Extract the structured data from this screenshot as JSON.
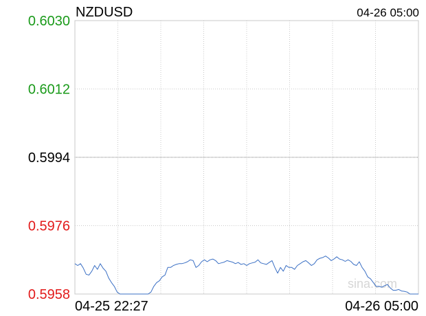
{
  "header": {
    "symbol": "NZDUSD",
    "timestamp": "04-26 05:00"
  },
  "watermark": "sina.com",
  "colors": {
    "line": "#3a6fc4",
    "up": "#1a9a1a",
    "down": "#e21a1a",
    "neutral": "#000000",
    "grid": "#c8c8c8",
    "frame": "#c8c8c8"
  },
  "chart_data": {
    "type": "line",
    "title": "NZDUSD",
    "reference_price": 0.5994,
    "ylim": [
      0.5958,
      0.603
    ],
    "y_ticks": [
      {
        "label": "0.6030",
        "value": 0.603,
        "color": "up"
      },
      {
        "label": "0.6012",
        "value": 0.6012,
        "color": "up"
      },
      {
        "label": "0.5994",
        "value": 0.5994,
        "color": "neutral"
      },
      {
        "label": "0.5976",
        "value": 0.5976,
        "color": "down"
      },
      {
        "label": "0.5958",
        "value": 0.5958,
        "color": "down"
      }
    ],
    "x_labels": [
      "04-25 22:27",
      "04-26 05:00"
    ],
    "vertical_gridlines": 8,
    "grid": true,
    "series": [
      {
        "values": [
          0.5966,
          0.59655,
          0.5966,
          0.59648,
          0.59632,
          0.5963,
          0.5964,
          0.59655,
          0.59645,
          0.5966,
          0.59648,
          0.5964,
          0.59622,
          0.5961,
          0.596,
          0.59585,
          0.59575,
          0.5958,
          0.59572,
          0.5957,
          0.5956,
          0.59578,
          0.59568,
          0.59548,
          0.5956,
          0.59575,
          0.59575,
          0.59585,
          0.596,
          0.5961,
          0.59615,
          0.59625,
          0.5963,
          0.5965,
          0.5965,
          0.59655,
          0.59658,
          0.5966,
          0.5966,
          0.59662,
          0.59665,
          0.5967,
          0.59668,
          0.5965,
          0.59655,
          0.59665,
          0.5967,
          0.59665,
          0.5967,
          0.59672,
          0.59668,
          0.5966,
          0.59662,
          0.59664,
          0.59668,
          0.59666,
          0.59664,
          0.5966,
          0.59663,
          0.59658,
          0.5966,
          0.59655,
          0.5966,
          0.59662,
          0.59664,
          0.5967,
          0.59662,
          0.5966,
          0.59658,
          0.59663,
          0.59668,
          0.5965,
          0.59635,
          0.5965,
          0.5964,
          0.59655,
          0.5965,
          0.5965,
          0.59645,
          0.59655,
          0.5966,
          0.59665,
          0.59668,
          0.59662,
          0.59655,
          0.5966,
          0.5967,
          0.59674,
          0.59676,
          0.5968,
          0.59675,
          0.59668,
          0.59672,
          0.59678,
          0.59672,
          0.5967,
          0.59666,
          0.5967,
          0.59666,
          0.59658,
          0.59655,
          0.59665,
          0.5965,
          0.5964,
          0.59625,
          0.5962,
          0.5961,
          0.596,
          0.596,
          0.59598,
          0.59602,
          0.59605,
          0.59596,
          0.5959,
          0.5959,
          0.59592,
          0.59588,
          0.59587,
          0.59585,
          0.5958,
          0.59578,
          0.59575,
          0.5957
        ]
      }
    ]
  }
}
